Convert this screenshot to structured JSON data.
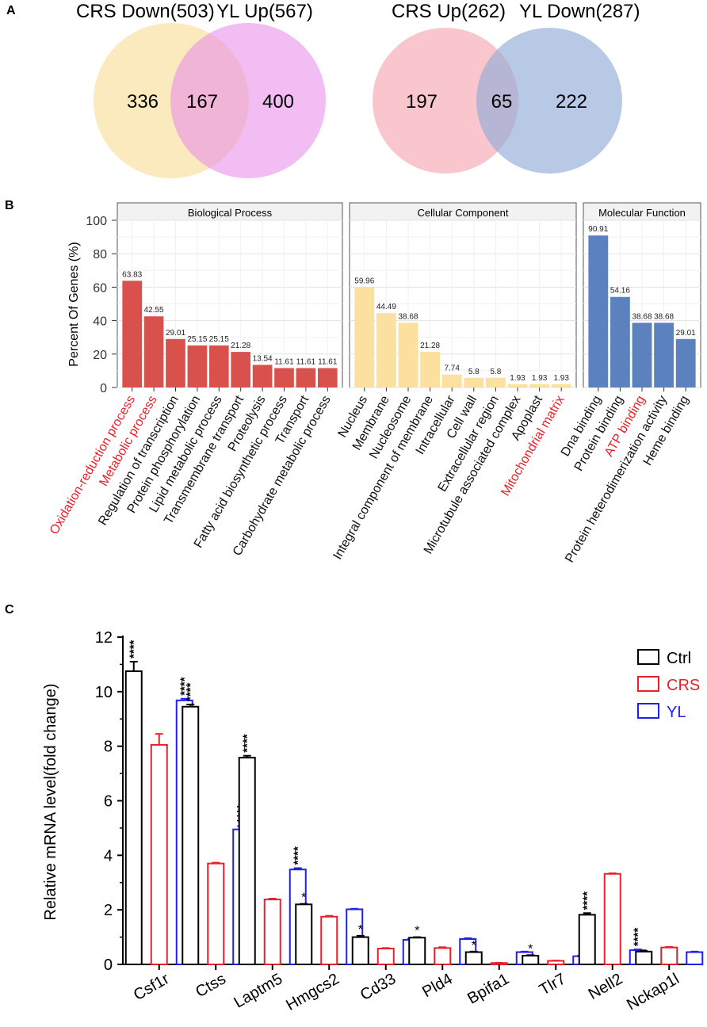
{
  "panels": {
    "a": "A",
    "b": "B",
    "c": "C"
  },
  "venn": [
    {
      "title_left": "CRS Down(503)",
      "title_right": "YL Up(567)",
      "only_left": "336",
      "overlap": "167",
      "only_right": "400",
      "color_left": "#fad98a",
      "color_right": "#e587ea"
    },
    {
      "title_left": "CRS Up(262)",
      "title_right": "YL Down(287)",
      "only_left": "197",
      "overlap": "65",
      "only_right": "222",
      "color_left": "#f4a8b0",
      "color_right": "#92acd9"
    }
  ],
  "chart_data": [
    {
      "type": "bar",
      "ylabel": "Percent Of Genes (%)",
      "ylim": [
        0,
        100
      ],
      "yticks": [
        0,
        20,
        40,
        60,
        80,
        100
      ],
      "highlight_color": "#e8202a",
      "facets": [
        {
          "title": "Biological Process",
          "color": "#d9514c",
          "categories": [
            "Oxidation-reduction process",
            "Metabolic process",
            "Regulation of transcription",
            "Protein phosphorylation",
            "Lipid metabolic process",
            "Transmembrane transport",
            "Proteolysis",
            "Fatty acid biosynthetic process",
            "Transport",
            "Carbohydrate metabolic process"
          ],
          "values": [
            63.83,
            42.55,
            29.01,
            25.15,
            25.15,
            21.28,
            13.54,
            11.61,
            11.61,
            11.61
          ],
          "labels": [
            "63.83",
            "42.55",
            "29.01",
            "25.15",
            "25.15",
            "21.28",
            "13.54",
            "11.61",
            "11.61",
            "11.61"
          ],
          "highlighted": [
            true,
            true,
            false,
            false,
            false,
            false,
            false,
            false,
            false,
            false
          ]
        },
        {
          "title": "Cellular Component",
          "color": "#fbe0a0",
          "categories": [
            "Nucleus",
            "Membrane",
            "Nucleosome",
            "Integral component of membrane",
            "Intracellular",
            "Cell wall",
            "Extracellular region",
            "Microtubule associated complex",
            "Apoplast",
            "Mitochondrial matrix"
          ],
          "values": [
            59.96,
            44.49,
            38.68,
            21.28,
            7.74,
            5.8,
            5.8,
            1.93,
            1.93,
            1.93
          ],
          "labels": [
            "59.96",
            "44.49",
            "38.68",
            "21.28",
            "7.74",
            "5.8",
            "5.8",
            "1.93",
            "1.93",
            "1.93"
          ],
          "highlighted": [
            false,
            false,
            false,
            false,
            false,
            false,
            false,
            false,
            false,
            true
          ]
        },
        {
          "title": "Molecular Function",
          "color": "#5b82bf",
          "categories": [
            "Dna binding",
            "Protein binding",
            "ATP binding",
            "Protein heterodimerization activity",
            "Heme binding"
          ],
          "values": [
            90.91,
            54.16,
            38.68,
            38.68,
            29.01
          ],
          "labels": [
            "90.91",
            "54.16",
            "38.68",
            "38.68",
            "29.01"
          ],
          "highlighted": [
            false,
            false,
            true,
            false,
            false
          ]
        }
      ]
    },
    {
      "type": "bar",
      "ylabel": "Relative mRNA level(fold change)",
      "ylim": [
        0,
        12
      ],
      "yticks": [
        0,
        2,
        4,
        6,
        8,
        10,
        12
      ],
      "categories": [
        "Csf1r",
        "Ctss",
        "Laptm5",
        "Hmgcs2",
        "Cd33",
        "Pld4",
        "Bpifa1",
        "Tlr7",
        "Nell2",
        "Nckap1l"
      ],
      "series": [
        {
          "name": "Ctrl",
          "color": "#000000",
          "values": [
            10.75,
            9.45,
            7.58,
            2.2,
            1.0,
            0.98,
            0.45,
            0.32,
            1.82,
            0.47
          ],
          "errors": [
            0.35,
            0.08,
            0.07,
            0.02,
            0.05,
            0.02,
            0.02,
            0.02,
            0.06,
            0.02
          ],
          "sig": [
            "****",
            "****",
            "****",
            "*",
            "*",
            "*",
            "*",
            "*",
            "****",
            ""
          ]
        },
        {
          "name": "CRS",
          "color": "#e8202a",
          "values": [
            8.05,
            3.7,
            2.38,
            1.75,
            0.58,
            0.6,
            0.05,
            0.13,
            3.32,
            0.62
          ],
          "errors": [
            0.4,
            0.03,
            0.03,
            0.03,
            0.02,
            0.03,
            0.01,
            0.01,
            0.02,
            0.02
          ],
          "sig": [
            "",
            "",
            "",
            "",
            "",
            "",
            "",
            "",
            "",
            ""
          ]
        },
        {
          "name": "YL",
          "color": "#2020e8",
          "values": [
            9.68,
            4.95,
            3.48,
            2.02,
            0.9,
            0.93,
            0.45,
            0.3,
            0.52,
            0.45
          ],
          "errors": [
            0.06,
            0.12,
            0.05,
            0.02,
            0.04,
            0.03,
            0.02,
            0.02,
            0.03,
            0.02
          ],
          "sig": [
            "****",
            "****",
            "****",
            "",
            "",
            "",
            "",
            "",
            "****",
            ""
          ]
        }
      ]
    }
  ]
}
